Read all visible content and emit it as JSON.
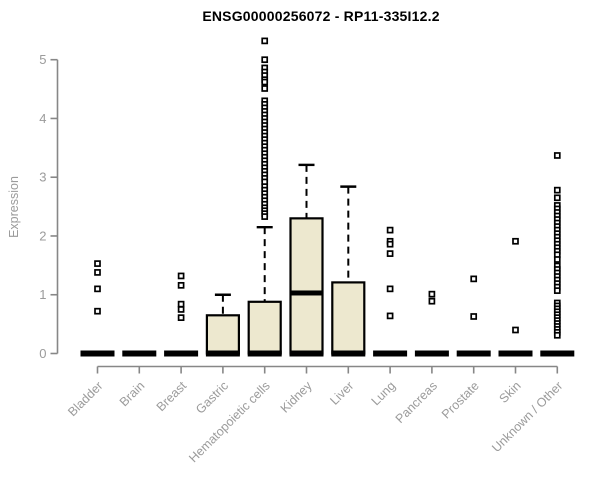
{
  "chart_data": {
    "type": "boxplot",
    "title": "ENSG00000256072 - RP11-335I12.2",
    "xlabel": "",
    "ylabel": "Expression",
    "ylim": [
      0,
      5.4
    ],
    "yticks": [
      0,
      1,
      2,
      3,
      4,
      5
    ],
    "grid": false,
    "legend": "none",
    "categories": [
      "Bladder",
      "Brain",
      "Breast",
      "Gastric",
      "Hematopoietic cells",
      "Kidney",
      "Liver",
      "Lung",
      "Pancreas",
      "Prostate",
      "Skin",
      "Unknown / Other"
    ],
    "boxes": [
      {
        "category": "Bladder",
        "q1": 0,
        "median": 0,
        "q3": 0,
        "whisker_low": 0,
        "whisker_high": 0,
        "outliers": [
          1.53,
          1.38,
          1.1,
          0.72
        ]
      },
      {
        "category": "Brain",
        "q1": 0,
        "median": 0,
        "q3": 0,
        "whisker_low": 0,
        "whisker_high": 0,
        "outliers": []
      },
      {
        "category": "Breast",
        "q1": 0,
        "median": 0,
        "q3": 0,
        "whisker_low": 0,
        "whisker_high": 0,
        "outliers": [
          1.32,
          1.16,
          0.84,
          0.75,
          0.61
        ]
      },
      {
        "category": "Gastric",
        "q1": 0,
        "median": 0,
        "q3": 0.65,
        "whisker_low": 0,
        "whisker_high": 1.0,
        "outliers": []
      },
      {
        "category": "Hematopoietic cells",
        "q1": 0,
        "median": 0,
        "q3": 0.88,
        "whisker_low": 0,
        "whisker_high": 2.15,
        "outliers": [
          5.32,
          5.0,
          4.86,
          4.79,
          4.73,
          4.66,
          4.62,
          4.51,
          4.3,
          4.24,
          4.18,
          4.12,
          4.06,
          4.0,
          3.94,
          3.88,
          3.82,
          3.76,
          3.7,
          3.64,
          3.58,
          3.52,
          3.46,
          3.4,
          3.34,
          3.28,
          3.22,
          3.16,
          3.1,
          3.04,
          2.98,
          2.92,
          2.84,
          2.78,
          2.72,
          2.66,
          2.6,
          2.54,
          2.48,
          2.43,
          2.38,
          2.33
        ]
      },
      {
        "category": "Kidney",
        "q1": 0,
        "median": 1.03,
        "q3": 2.3,
        "whisker_low": 0,
        "whisker_high": 3.21,
        "outliers": []
      },
      {
        "category": "Liver",
        "q1": 0,
        "median": 0,
        "q3": 1.21,
        "whisker_low": 0,
        "whisker_high": 2.84,
        "outliers": []
      },
      {
        "category": "Lung",
        "q1": 0,
        "median": 0,
        "q3": 0,
        "whisker_low": 0,
        "whisker_high": 0,
        "outliers": [
          2.1,
          1.91,
          1.86,
          1.7,
          1.1,
          0.64
        ]
      },
      {
        "category": "Pancreas",
        "q1": 0,
        "median": 0,
        "q3": 0,
        "whisker_low": 0,
        "whisker_high": 0,
        "outliers": [
          1.01,
          0.89
        ]
      },
      {
        "category": "Prostate",
        "q1": 0,
        "median": 0,
        "q3": 0,
        "whisker_low": 0,
        "whisker_high": 0,
        "outliers": [
          1.27,
          0.63
        ]
      },
      {
        "category": "Skin",
        "q1": 0,
        "median": 0,
        "q3": 0,
        "whisker_low": 0,
        "whisker_high": 0,
        "outliers": [
          1.91,
          0.4
        ]
      },
      {
        "category": "Unknown / Other",
        "q1": 0,
        "median": 0,
        "q3": 0,
        "whisker_low": 0,
        "whisker_high": 0,
        "outliers": [
          3.37,
          2.78,
          2.65,
          2.52,
          2.46,
          2.4,
          2.34,
          2.28,
          2.22,
          2.16,
          2.1,
          2.04,
          1.98,
          1.92,
          1.86,
          1.8,
          1.74,
          1.68,
          1.6,
          1.49,
          1.43,
          1.37,
          1.31,
          1.25,
          1.19,
          1.13,
          1.07,
          0.86,
          0.81,
          0.76,
          0.71,
          0.66,
          0.61,
          0.56,
          0.51,
          0.46,
          0.41,
          0.36,
          0.31
        ]
      }
    ],
    "colors": {
      "box_fill": "#EDE8CF",
      "box_stroke": "#000000",
      "median": "#000000",
      "whisker": "#000000",
      "outlier_stroke": "#000000",
      "outlier_fill": "#ffffff",
      "axis_line": "#878787",
      "tick_label": "#9b9b9b",
      "title": "#000000"
    }
  }
}
